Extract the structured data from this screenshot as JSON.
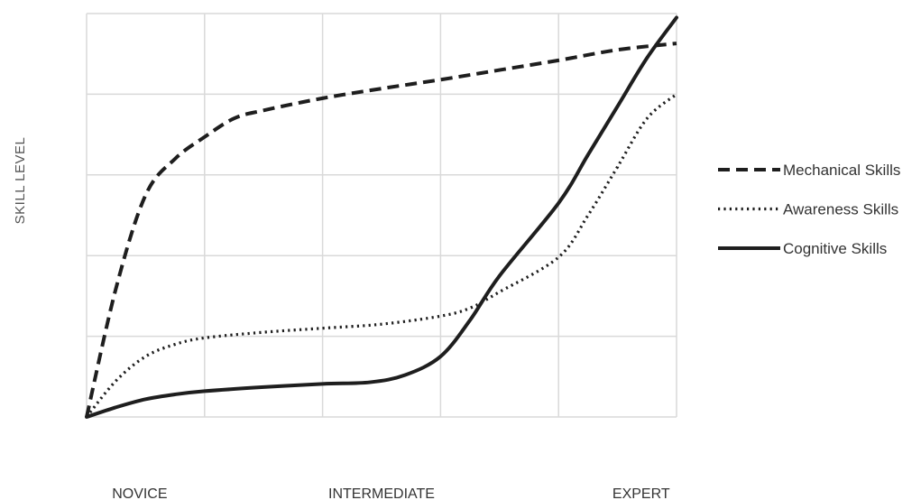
{
  "chart_data": {
    "type": "line",
    "title": "",
    "xlabel": "",
    "ylabel": "SKILL LEVEL",
    "xlim": [
      0,
      5
    ],
    "ylim": [
      0,
      5
    ],
    "grid": true,
    "legend_position": "right",
    "x_tick_labels": [
      {
        "x": 0.45,
        "label": "NOVICE"
      },
      {
        "x": 2.5,
        "label": "INTERMEDIATE"
      },
      {
        "x": 4.7,
        "label": "EXPERT"
      }
    ],
    "series": [
      {
        "name": "Mechanical Skills",
        "style": "dashed",
        "x": [
          0,
          0.25,
          0.5,
          0.75,
          1.0,
          1.25,
          1.5,
          2.0,
          2.5,
          3.0,
          3.5,
          4.0,
          4.5,
          5.0
        ],
        "y": [
          0,
          1.6,
          2.75,
          3.2,
          3.47,
          3.7,
          3.8,
          3.95,
          4.07,
          4.18,
          4.3,
          4.42,
          4.55,
          4.63
        ]
      },
      {
        "name": "Awareness Skills",
        "style": "dotted",
        "x": [
          0,
          0.25,
          0.5,
          0.75,
          1.0,
          1.5,
          2.0,
          2.5,
          3.0,
          3.25,
          3.5,
          4.0,
          4.25,
          4.5,
          4.75,
          5.0
        ],
        "y": [
          0,
          0.45,
          0.75,
          0.9,
          0.98,
          1.05,
          1.1,
          1.15,
          1.25,
          1.35,
          1.55,
          1.98,
          2.5,
          3.1,
          3.7,
          4.0
        ]
      },
      {
        "name": "Cognitive Skills",
        "style": "solid",
        "x": [
          0,
          0.25,
          0.5,
          0.75,
          1.0,
          1.5,
          2.0,
          2.4,
          2.7,
          3.0,
          3.25,
          3.5,
          4.0,
          4.25,
          4.5,
          4.75,
          5.0
        ],
        "y": [
          0,
          0.12,
          0.22,
          0.28,
          0.32,
          0.37,
          0.41,
          0.43,
          0.52,
          0.75,
          1.2,
          1.75,
          2.65,
          3.25,
          3.85,
          4.45,
          4.95
        ]
      }
    ]
  },
  "colors": {
    "line": "#1e1e1e",
    "grid": "#d9d9d9",
    "axis_label": "#555555",
    "text": "#333333"
  }
}
